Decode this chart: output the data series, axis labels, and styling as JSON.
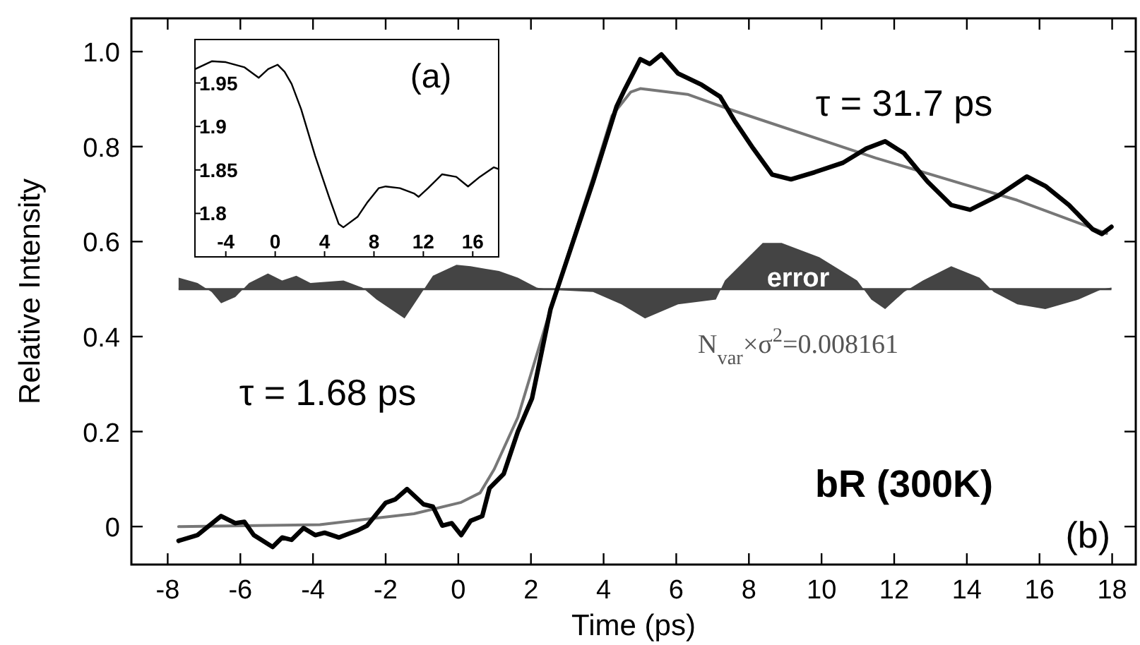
{
  "chart_data": [
    {
      "type": "line",
      "xlabel": "Time (ps)",
      "ylabel": "Relative Intensity",
      "xlim": [
        -9,
        18.65
      ],
      "ylim": [
        -0.08,
        1.07
      ],
      "xticks": [
        -8,
        -6,
        -4,
        -2,
        0,
        2,
        4,
        6,
        8,
        10,
        12,
        14,
        16,
        18
      ],
      "yticks": [
        0,
        0.2,
        0.4,
        0.6,
        0.8,
        {
          "value": 1,
          "label": "1.0"
        }
      ],
      "grid": false,
      "annotations": [
        "τ = 31.7 ps",
        "τ = 1.68 ps",
        "error",
        "N$_{var}$×σ$^{2}$=0.008161",
        "bR (300K)",
        "(b)"
      ],
      "ref_lines": [
        {
          "axis": "y",
          "value": 0.5,
          "color": "#444444"
        }
      ],
      "series": [
        {
          "type": "area",
          "color": "#444444",
          "x": [
            -7.7,
            -7.18,
            -6.79,
            -6.53,
            -6.14,
            -5.76,
            -5.24,
            -4.85,
            -4.46,
            -4.07,
            -3.16,
            -2.64,
            -2.25,
            -1.48,
            -1.22,
            -0.7,
            -0.05,
            0.34,
            0.73,
            1.12,
            1.64,
            2.16,
            2.67,
            3.71,
            4.49,
            5.14,
            6.05,
            7.09,
            7.34,
            8.38,
            8.9,
            9.94,
            10.98,
            11.37,
            11.75,
            12.27,
            12.79,
            13.57,
            14.35,
            14.74,
            15.39,
            16.16,
            17.07,
            17.72,
            17.98
          ],
          "values": [
            0.524,
            0.513,
            0.494,
            0.47,
            0.483,
            0.513,
            0.533,
            0.518,
            0.528,
            0.513,
            0.518,
            0.503,
            0.478,
            0.438,
            0.468,
            0.528,
            0.551,
            0.548,
            0.543,
            0.538,
            0.524,
            0.503,
            0.498,
            0.494,
            0.468,
            0.438,
            0.468,
            0.478,
            0.518,
            0.597,
            0.597,
            0.567,
            0.518,
            0.478,
            0.458,
            0.494,
            0.518,
            0.548,
            0.524,
            0.494,
            0.468,
            0.458,
            0.478,
            0.5,
            0.503
          ]
        },
        {
          "color": "#777777",
          "x": [
            -7.7,
            -3.81,
            -1.22,
            0.08,
            0.6,
            0.99,
            1.64,
            2.54,
            3.71,
            4.23,
            4.75,
            5.01,
            6.31,
            7.6,
            11.49,
            15.39,
            17.85
          ],
          "values": [
            0.0,
            0.004,
            0.027,
            0.051,
            0.071,
            0.121,
            0.23,
            0.458,
            0.736,
            0.865,
            0.915,
            0.922,
            0.91,
            0.875,
            0.776,
            0.687,
            0.617
          ]
        },
        {
          "color": "#000000",
          "x": [
            -7.7,
            -7.18,
            -6.53,
            -6.14,
            -5.89,
            -5.63,
            -5.11,
            -4.85,
            -4.59,
            -4.26,
            -3.94,
            -3.68,
            -3.29,
            -2.77,
            -2.51,
            -2.0,
            -1.74,
            -1.41,
            -0.96,
            -0.7,
            -0.44,
            -0.18,
            0.08,
            0.34,
            0.66,
            0.86,
            1.25,
            1.64,
            2.03,
            2.54,
            3.71,
            4.36,
            4.58,
            5.01,
            5.27,
            5.59,
            6.05,
            6.7,
            7.21,
            7.6,
            8.12,
            8.64,
            9.16,
            9.81,
            10.59,
            11.23,
            11.75,
            12.27,
            12.92,
            13.57,
            14.09,
            14.87,
            15.65,
            16.16,
            16.81,
            17.46,
            17.72,
            17.98
          ],
          "values": [
            -0.03,
            -0.018,
            0.022,
            0.007,
            0.01,
            -0.018,
            -0.043,
            -0.023,
            -0.028,
            -0.003,
            -0.018,
            -0.013,
            -0.023,
            -0.008,
            0.002,
            0.05,
            0.057,
            0.079,
            0.047,
            0.042,
            0.002,
            0.007,
            -0.018,
            0.012,
            0.022,
            0.081,
            0.111,
            0.2,
            0.27,
            0.458,
            0.726,
            0.885,
            0.92,
            0.984,
            0.974,
            0.994,
            0.954,
            0.93,
            0.905,
            0.855,
            0.796,
            0.741,
            0.731,
            0.746,
            0.766,
            0.796,
            0.811,
            0.786,
            0.726,
            0.677,
            0.667,
            0.697,
            0.737,
            0.717,
            0.677,
            0.626,
            0.616,
            0.631
          ]
        }
      ]
    },
    {
      "type": "line",
      "xlim": [
        -6.5,
        18.1
      ],
      "ylim": [
        1.75,
        2.0
      ],
      "xticks": [
        -4,
        0,
        4,
        8,
        12,
        16
      ],
      "yticks": [
        1.95,
        1.9,
        1.85,
        1.8
      ],
      "grid": false,
      "annotations": [
        "(a)"
      ],
      "series": [
        {
          "color": "#000000",
          "x": [
            -6.48,
            -5.14,
            -4.0,
            -2.48,
            -1.33,
            -0.57,
            0.19,
            0.76,
            1.33,
            2.1,
            3.24,
            4.38,
            5.14,
            5.52,
            6.67,
            7.43,
            8.38,
            8.95,
            10.1,
            11.24,
            11.62,
            12.38,
            13.52,
            14.67,
            15.62,
            16.57,
            17.71,
            18.1
          ],
          "values": [
            1.966,
            1.975,
            1.974,
            1.968,
            1.956,
            1.966,
            1.971,
            1.963,
            1.949,
            1.92,
            1.866,
            1.818,
            1.788,
            1.784,
            1.796,
            1.812,
            1.829,
            1.831,
            1.829,
            1.823,
            1.819,
            1.829,
            1.845,
            1.842,
            1.831,
            1.842,
            1.853,
            1.851
          ]
        }
      ]
    }
  ]
}
